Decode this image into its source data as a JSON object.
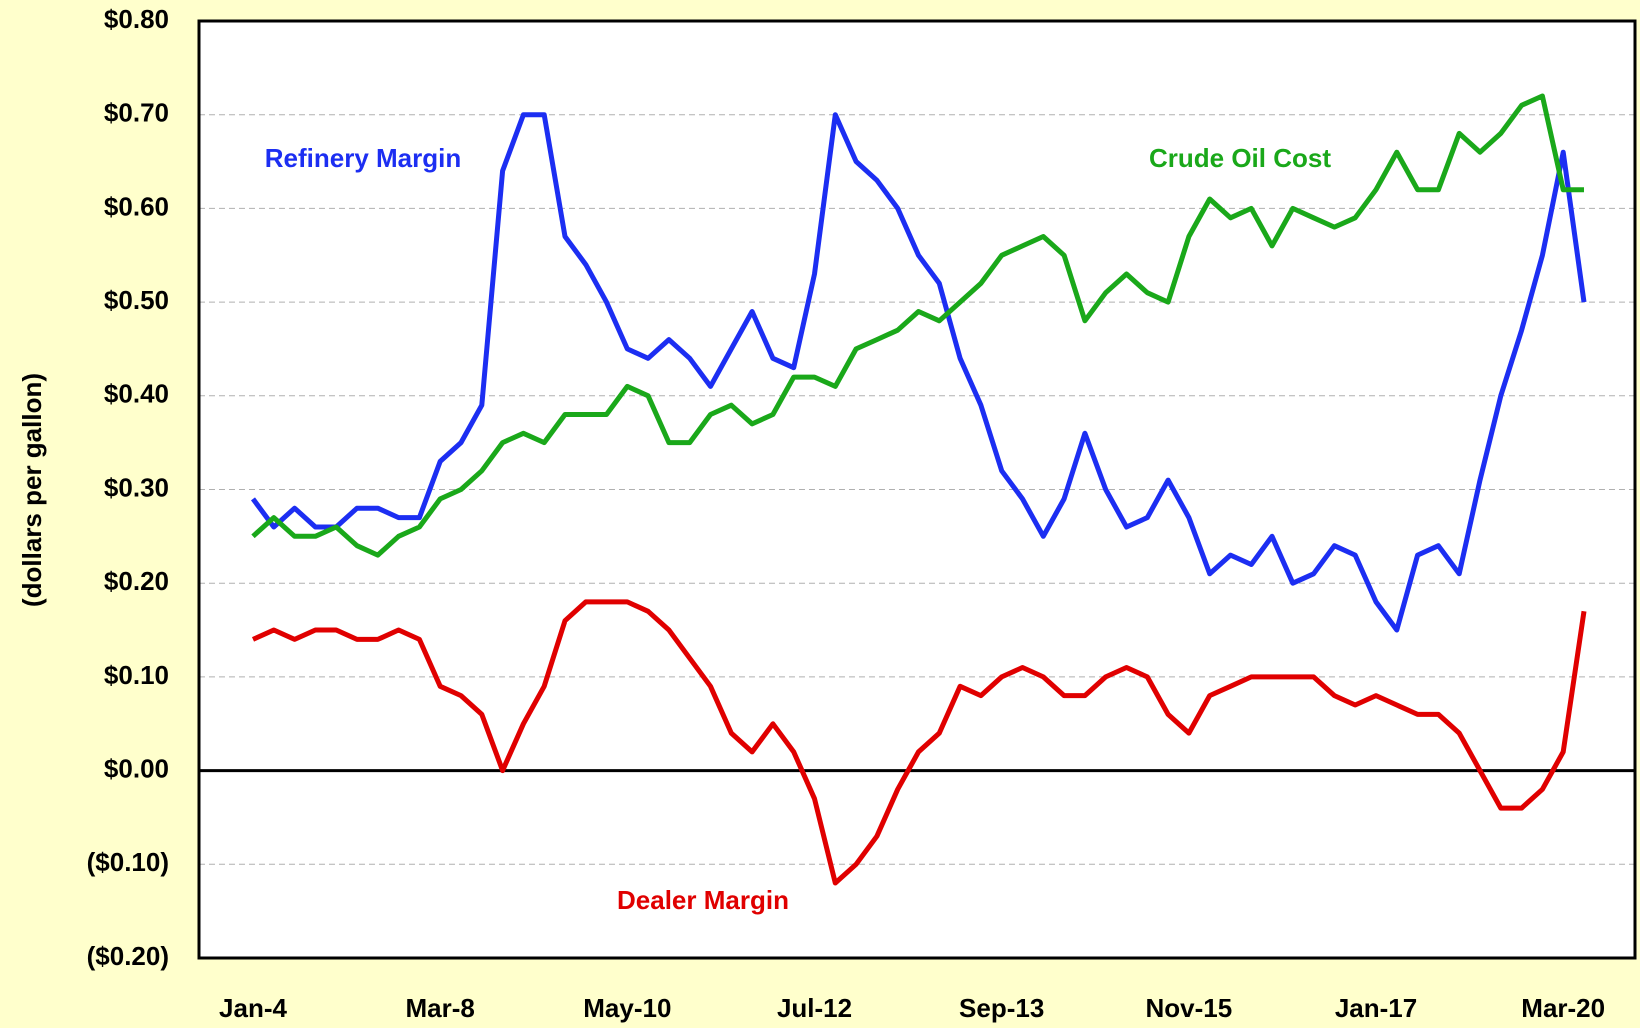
{
  "chart_data": {
    "type": "line",
    "y_label": "(dollars per gallon)",
    "categories": [
      "Jan-4",
      null,
      null,
      null,
      null,
      null,
      null,
      null,
      null,
      "Mar-8",
      null,
      null,
      null,
      null,
      null,
      null,
      null,
      null,
      "May-10",
      null,
      null,
      null,
      null,
      null,
      null,
      null,
      null,
      "Jul-12",
      null,
      null,
      null,
      null,
      null,
      null,
      null,
      null,
      "Sep-13",
      null,
      null,
      null,
      null,
      null,
      null,
      null,
      null,
      "Nov-15",
      null,
      null,
      null,
      null,
      null,
      null,
      null,
      null,
      "Jan-17",
      null,
      null,
      null,
      null,
      null,
      null,
      null,
      null,
      "Mar-20",
      null
    ],
    "series": [
      {
        "name": "Refinery Margin",
        "color": "#1c2ef2",
        "values": [
          0.29,
          0.26,
          0.28,
          0.26,
          0.26,
          0.28,
          0.28,
          0.27,
          0.27,
          0.33,
          0.35,
          0.39,
          0.64,
          0.7,
          0.7,
          0.57,
          0.54,
          0.5,
          0.45,
          0.44,
          0.46,
          0.44,
          0.41,
          0.45,
          0.49,
          0.44,
          0.43,
          0.53,
          0.7,
          0.65,
          0.63,
          0.6,
          0.55,
          0.52,
          0.44,
          0.39,
          0.32,
          0.29,
          0.25,
          0.29,
          0.36,
          0.3,
          0.26,
          0.27,
          0.31,
          0.27,
          0.21,
          0.23,
          0.22,
          0.25,
          0.2,
          0.21,
          0.24,
          0.23,
          0.18,
          0.15,
          0.23,
          0.24,
          0.21,
          0.31,
          0.4,
          0.47,
          0.55,
          0.66,
          0.5
        ]
      },
      {
        "name": "Crude Oil Cost",
        "color": "#1aa81a",
        "values": [
          0.25,
          0.27,
          0.25,
          0.25,
          0.26,
          0.24,
          0.23,
          0.25,
          0.26,
          0.29,
          0.3,
          0.32,
          0.35,
          0.36,
          0.35,
          0.38,
          0.38,
          0.38,
          0.41,
          0.4,
          0.35,
          0.35,
          0.38,
          0.39,
          0.37,
          0.38,
          0.42,
          0.42,
          0.41,
          0.45,
          0.46,
          0.47,
          0.49,
          0.48,
          0.5,
          0.52,
          0.55,
          0.56,
          0.57,
          0.55,
          0.48,
          0.51,
          0.53,
          0.51,
          0.5,
          0.57,
          0.61,
          0.59,
          0.6,
          0.56,
          0.6,
          0.59,
          0.58,
          0.59,
          0.62,
          0.66,
          0.62,
          0.62,
          0.68,
          0.66,
          0.68,
          0.71,
          0.72,
          0.62,
          0.62
        ]
      },
      {
        "name": "Dealer Margin",
        "color": "#e00000",
        "values": [
          0.14,
          0.15,
          0.14,
          0.15,
          0.15,
          0.14,
          0.14,
          0.15,
          0.14,
          0.09,
          0.08,
          0.06,
          0.0,
          0.05,
          0.09,
          0.16,
          0.18,
          0.18,
          0.18,
          0.17,
          0.15,
          0.12,
          0.09,
          0.04,
          0.02,
          0.05,
          0.02,
          -0.03,
          -0.12,
          -0.1,
          -0.07,
          -0.02,
          0.02,
          0.04,
          0.09,
          0.08,
          0.1,
          0.11,
          0.1,
          0.08,
          0.08,
          0.1,
          0.11,
          0.1,
          0.06,
          0.04,
          0.08,
          0.09,
          0.1,
          0.1,
          0.1,
          0.1,
          0.08,
          0.07,
          0.08,
          0.07,
          0.06,
          0.06,
          0.04,
          0.0,
          -0.04,
          -0.04,
          -0.02,
          0.02,
          0.17
        ]
      }
    ],
    "ylim": [
      -0.2,
      0.8
    ],
    "yticks": [
      {
        "value": -0.2,
        "label": "($0.20)"
      },
      {
        "value": -0.1,
        "label": "($0.10)"
      },
      {
        "value": 0,
        "label": "$0.00"
      },
      {
        "value": 0.1,
        "label": "$0.10"
      },
      {
        "value": 0.2,
        "label": "$0.20"
      },
      {
        "value": 0.3,
        "label": "$0.30"
      },
      {
        "value": 0.4,
        "label": "$0.40"
      },
      {
        "value": 0.5,
        "label": "$0.50"
      },
      {
        "value": 0.6,
        "label": "$0.60"
      },
      {
        "value": 0.7,
        "label": "$0.70"
      },
      {
        "value": 0.8,
        "label": "$0.80"
      }
    ],
    "grid": true
  }
}
